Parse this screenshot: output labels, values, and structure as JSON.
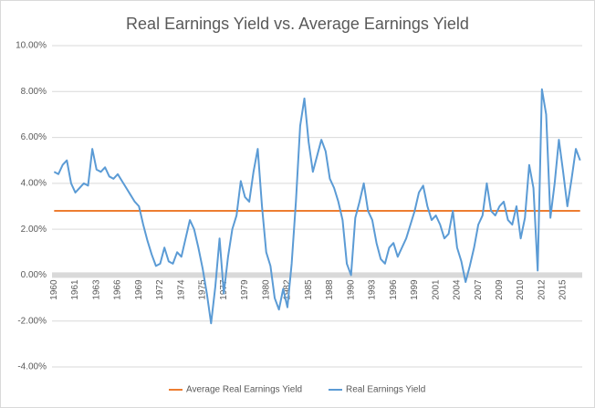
{
  "chart_data": {
    "type": "line",
    "title": "Real Earnings Yield vs. Average Earnings Yield",
    "categories": [
      "1960",
      null,
      null,
      null,
      null,
      "1961",
      null,
      null,
      null,
      null,
      "1963",
      null,
      null,
      null,
      null,
      "1966",
      null,
      null,
      null,
      null,
      "1969",
      null,
      null,
      null,
      null,
      "1972",
      null,
      null,
      null,
      null,
      "1974",
      null,
      null,
      null,
      null,
      "1975",
      null,
      null,
      null,
      null,
      "1977",
      null,
      null,
      null,
      null,
      "1979",
      null,
      null,
      null,
      null,
      "1980",
      null,
      null,
      null,
      null,
      "1982",
      null,
      null,
      null,
      null,
      "1985",
      null,
      null,
      null,
      null,
      "1988",
      null,
      null,
      null,
      null,
      "1990",
      null,
      null,
      null,
      null,
      "1993",
      null,
      null,
      null,
      null,
      "1996",
      null,
      null,
      null,
      null,
      "1999",
      null,
      null,
      null,
      null,
      "2001",
      null,
      null,
      null,
      null,
      "2004",
      null,
      null,
      null,
      null,
      "2007",
      null,
      null,
      null,
      null,
      "2009",
      null,
      null,
      null,
      null,
      "2010",
      null,
      null,
      null,
      null,
      "2012",
      null,
      null,
      null,
      null,
      "2015",
      null,
      null,
      null,
      null
    ],
    "series": [
      {
        "name": "Average Real Earnings Yield",
        "color": "#ed7d31",
        "values": [
          2.8,
          2.8,
          2.8,
          2.8,
          2.8,
          2.8,
          2.8,
          2.8,
          2.8,
          2.8,
          2.8,
          2.8,
          2.8,
          2.8,
          2.8,
          2.8,
          2.8,
          2.8,
          2.8,
          2.8,
          2.8,
          2.8,
          2.8,
          2.8,
          2.8,
          2.8,
          2.8,
          2.8,
          2.8,
          2.8,
          2.8,
          2.8,
          2.8,
          2.8,
          2.8,
          2.8,
          2.8,
          2.8,
          2.8,
          2.8,
          2.8,
          2.8,
          2.8,
          2.8,
          2.8,
          2.8,
          2.8,
          2.8,
          2.8,
          2.8,
          2.8,
          2.8,
          2.8,
          2.8,
          2.8,
          2.8,
          2.8,
          2.8,
          2.8,
          2.8,
          2.8,
          2.8,
          2.8,
          2.8,
          2.8,
          2.8,
          2.8,
          2.8,
          2.8,
          2.8,
          2.8,
          2.8,
          2.8,
          2.8,
          2.8,
          2.8,
          2.8,
          2.8,
          2.8,
          2.8,
          2.8,
          2.8,
          2.8,
          2.8,
          2.8,
          2.8,
          2.8,
          2.8,
          2.8,
          2.8,
          2.8,
          2.8,
          2.8,
          2.8,
          2.8,
          2.8,
          2.8,
          2.8,
          2.8,
          2.8,
          2.8,
          2.8,
          2.8,
          2.8,
          2.8,
          2.8,
          2.8,
          2.8,
          2.8,
          2.8,
          2.8,
          2.8,
          2.8,
          2.8,
          2.8,
          2.8,
          2.8,
          2.8,
          2.8,
          2.8,
          2.8,
          2.8,
          2.8,
          2.8,
          2.8
        ]
      },
      {
        "name": "Real Earnings Yield",
        "color": "#5b9bd5",
        "values": [
          4.5,
          4.4,
          4.8,
          5.0,
          4.0,
          3.6,
          3.8,
          4.0,
          3.9,
          5.5,
          4.6,
          4.5,
          4.7,
          4.3,
          4.2,
          4.4,
          4.1,
          3.8,
          3.5,
          3.2,
          3.0,
          2.2,
          1.5,
          0.9,
          0.4,
          0.5,
          1.2,
          0.6,
          0.5,
          1.0,
          0.8,
          1.6,
          2.4,
          2.0,
          1.2,
          0.3,
          -0.8,
          -2.1,
          -0.5,
          1.6,
          -0.8,
          0.8,
          2.0,
          2.6,
          4.1,
          3.4,
          3.2,
          4.5,
          5.5,
          3.0,
          1.0,
          0.4,
          -1.0,
          -1.5,
          -0.6,
          -1.4,
          0.5,
          3.2,
          6.5,
          7.7,
          5.8,
          4.5,
          5.2,
          5.9,
          5.4,
          4.2,
          3.8,
          3.2,
          2.4,
          0.5,
          0.0,
          2.5,
          3.2,
          4.0,
          2.8,
          2.4,
          1.4,
          0.7,
          0.5,
          1.2,
          1.4,
          0.8,
          1.2,
          1.6,
          2.2,
          2.8,
          3.6,
          3.9,
          3.0,
          2.4,
          2.6,
          2.2,
          1.6,
          1.8,
          2.8,
          1.2,
          0.6,
          -0.3,
          0.4,
          1.2,
          2.2,
          2.6,
          4.0,
          2.8,
          2.6,
          3.0,
          3.2,
          2.4,
          2.2,
          3.0,
          1.6,
          2.5,
          4.8,
          3.8,
          0.2,
          8.1,
          7.0,
          2.5,
          4.0,
          5.9,
          4.5,
          3.0,
          4.2,
          5.5,
          5.0
        ]
      }
    ],
    "ylim": [
      -4,
      10
    ],
    "yticks": [
      {
        "value": -4,
        "label": "-4.00%"
      },
      {
        "value": -2,
        "label": "-2.00%"
      },
      {
        "value": 0,
        "label": "0.00%"
      },
      {
        "value": 2,
        "label": "2.00%"
      },
      {
        "value": 4,
        "label": "4.00%"
      },
      {
        "value": 6,
        "label": "6.00%"
      },
      {
        "value": 8,
        "label": "8.00%"
      },
      {
        "value": 10,
        "label": "10.00%"
      }
    ],
    "grid": true,
    "legend": "bottom"
  }
}
